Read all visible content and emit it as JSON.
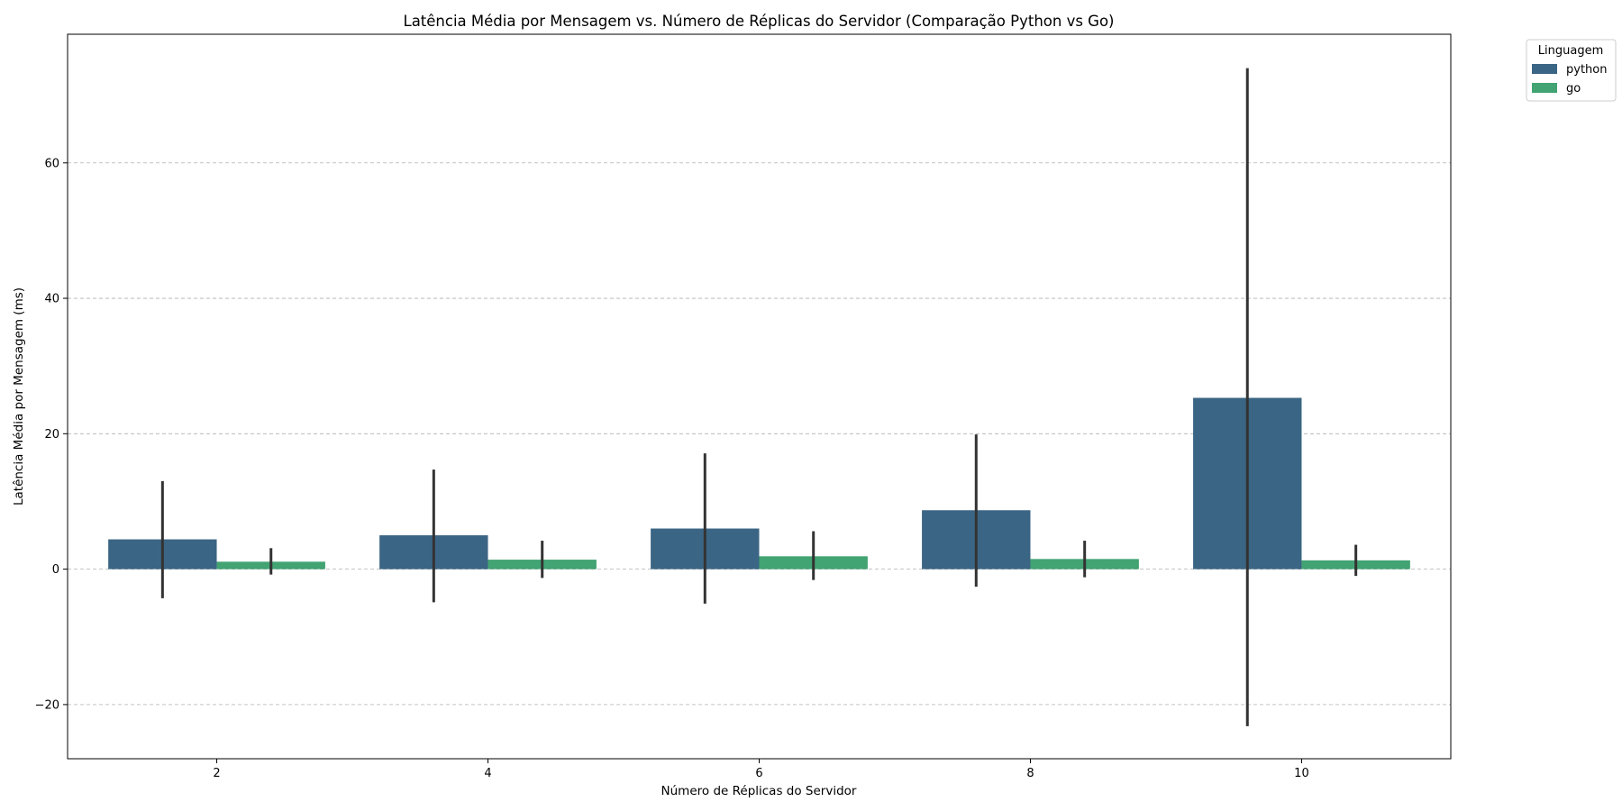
{
  "chart_data": {
    "type": "bar",
    "title": "Latência Média por Mensagem vs. Número de Réplicas do Servidor (Comparação Python vs Go)",
    "xlabel": "Número de Réplicas do Servidor",
    "ylabel": "Latência Média por Mensagem (ms)",
    "categories": [
      "2",
      "4",
      "6",
      "8",
      "10"
    ],
    "ylim": [
      -28,
      79
    ],
    "yticks": [
      -20,
      0,
      20,
      40,
      60
    ],
    "ytick_labels": [
      "−20",
      "0",
      "20",
      "40",
      "60"
    ],
    "grid": "y dashed",
    "legend": {
      "title": "Linguagem",
      "placement": "outside top-right"
    },
    "series": [
      {
        "name": "python",
        "color": "#3b6584",
        "values": [
          4.4,
          5.0,
          6.0,
          8.7,
          25.3
        ],
        "error_low": [
          -4.3,
          -4.9,
          -5.1,
          -2.6,
          -23.2
        ],
        "error_high": [
          13.0,
          14.7,
          17.1,
          19.9,
          74.0
        ]
      },
      {
        "name": "go",
        "color": "#42a373",
        "values": [
          1.1,
          1.4,
          1.9,
          1.5,
          1.3
        ],
        "error_low": [
          -0.8,
          -1.3,
          -1.6,
          -1.2,
          -1.0
        ],
        "error_high": [
          3.1,
          4.2,
          5.6,
          4.2,
          3.6
        ]
      }
    ]
  }
}
